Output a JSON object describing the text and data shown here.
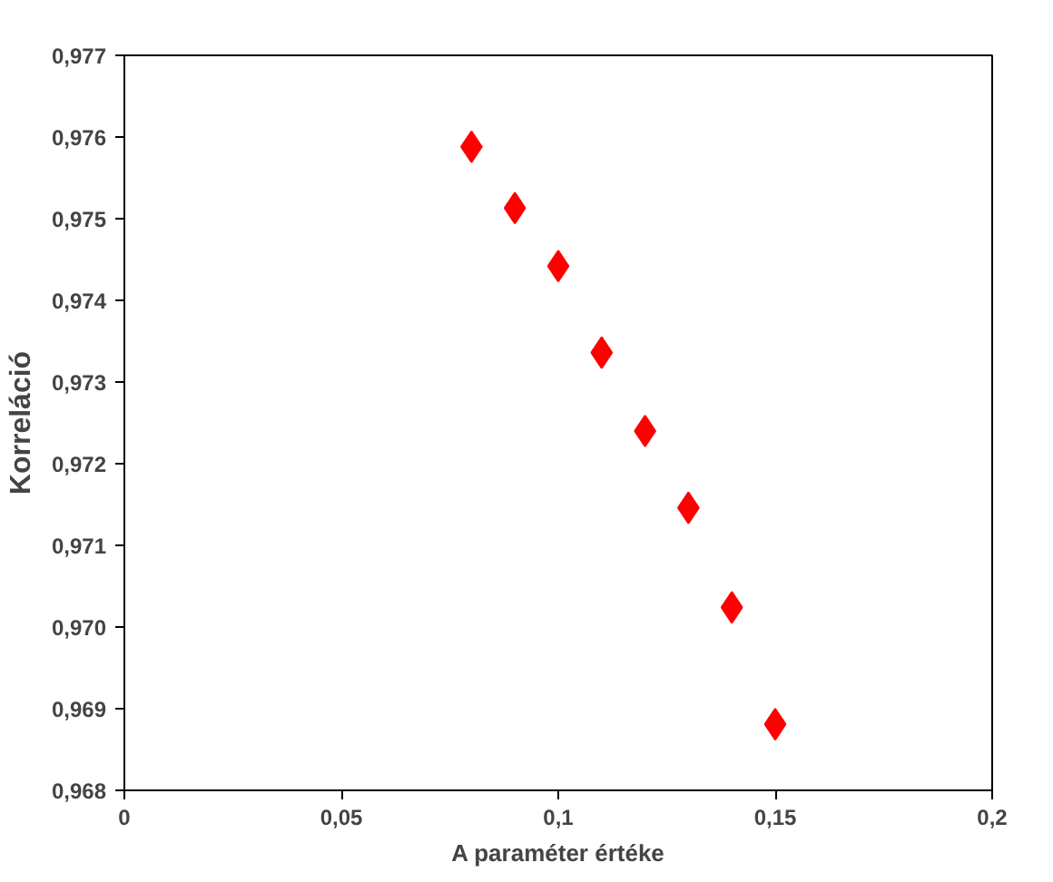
{
  "chart_data": {
    "type": "scatter",
    "xlabel": "A paraméter értéke",
    "ylabel": "Korreláció",
    "x": [
      0.08,
      0.09,
      0.1,
      0.11,
      0.12,
      0.13,
      0.14,
      0.15
    ],
    "series": [
      {
        "color": "#ff0000",
        "values": [
          0.97588,
          0.97513,
          0.97442,
          0.97336,
          0.9724,
          0.97146,
          0.97024,
          0.96881
        ]
      }
    ],
    "xlim": [
      0,
      0.2
    ],
    "xticks": [
      {
        "value": 0,
        "label": "0"
      },
      {
        "value": 0.05,
        "label": "0,05"
      },
      {
        "value": 0.1,
        "label": "0,1"
      },
      {
        "value": 0.15,
        "label": "0,15"
      },
      {
        "value": 0.2,
        "label": "0,2"
      }
    ],
    "ylim": [
      0.968,
      0.977
    ],
    "yticks": [
      {
        "value": 0.968,
        "label": "0,968"
      },
      {
        "value": 0.969,
        "label": "0,969"
      },
      {
        "value": 0.97,
        "label": "0,970"
      },
      {
        "value": 0.971,
        "label": "0,971"
      },
      {
        "value": 0.972,
        "label": "0,972"
      },
      {
        "value": 0.973,
        "label": "0,973"
      },
      {
        "value": 0.974,
        "label": "0,974"
      },
      {
        "value": 0.975,
        "label": "0,975"
      },
      {
        "value": 0.976,
        "label": "0,976"
      },
      {
        "value": 0.977,
        "label": "0,977"
      }
    ],
    "grid": false,
    "marker": "diamond"
  }
}
